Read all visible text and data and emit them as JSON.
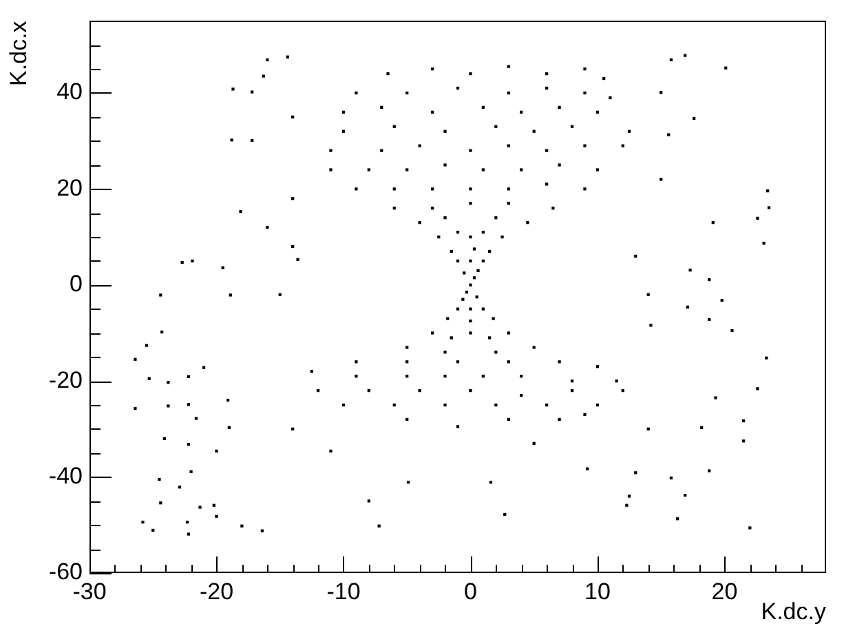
{
  "chart_data": {
    "type": "scatter",
    "xlabel": "K.dc.y",
    "ylabel": "K.dc.x",
    "x": [
      0,
      0.3,
      -0.3,
      0.6,
      -0.6,
      -0.5,
      0.5,
      1,
      -1,
      0,
      -1,
      1,
      0,
      1.5,
      -1.5,
      0.3,
      -1.8,
      1.8,
      0,
      2.5,
      -2.5,
      0,
      1,
      -1,
      3,
      -3,
      0,
      1.5,
      -1.5,
      -4,
      4.5,
      2,
      -2,
      -6,
      6.5,
      -3,
      3,
      0,
      -9,
      9,
      -6,
      -3,
      0,
      3,
      6,
      -11,
      -8,
      -5,
      -2,
      1,
      4,
      7,
      10,
      -11,
      -7,
      -4,
      0,
      3,
      6,
      9,
      12,
      -10,
      -6,
      -2,
      2,
      5,
      8,
      12.5,
      -10,
      -7,
      -3,
      1,
      4,
      7,
      10,
      -9,
      -5,
      -1,
      3,
      6,
      9,
      11,
      -6.5,
      -3,
      0,
      3,
      6,
      9,
      10.5,
      -5,
      5,
      -2,
      2,
      -9,
      -5,
      -1,
      3,
      7,
      10,
      -12.5,
      -9,
      -5,
      -2,
      1,
      4,
      8,
      11.5,
      -12,
      -8,
      -4,
      0,
      4,
      8,
      12,
      -10,
      -6,
      -2,
      2,
      6,
      10,
      -5,
      -1,
      3,
      7,
      9,
      -16,
      -14.4,
      -18.7,
      -17.2,
      16.9,
      20.1,
      15.8,
      -18.8,
      17.6,
      15.6,
      23.4,
      23.5,
      23.1,
      22.6,
      19.1,
      17.3,
      18.8,
      19.8,
      20.6,
      23.3,
      18.8,
      17.1,
      19.3,
      22.6,
      21.5,
      18.8,
      22,
      16.9,
      16.3,
      15.8,
      18.2,
      21.5,
      13,
      12.3,
      14.2,
      15,
      -26.4,
      -26.4,
      -24.4,
      -24.3,
      -25.5,
      -25.3,
      -23.8,
      -23.8,
      -24.1,
      -24.5,
      -24.4,
      -25.8,
      -25,
      -22.9,
      -22.3,
      -22.2,
      -22.2,
      -22,
      -21.3,
      -20.2,
      -20,
      -20,
      -22.2,
      -21,
      -21.6,
      -22.7,
      -21.9,
      -19.5,
      -18.9,
      -19.1,
      -19,
      -22.2,
      -18,
      -16.4,
      -7.2,
      -16.3,
      -17.2,
      -13.6,
      -18.1,
      -15,
      -14,
      -16,
      -14,
      14,
      13,
      15,
      -14,
      -11,
      -4.9,
      1.6,
      9.2,
      2.7,
      12.5,
      -8,
      5,
      -14,
      14
    ],
    "values": [
      0,
      1.5,
      -1.5,
      3,
      -3,
      2.5,
      -2.5,
      5,
      5,
      5,
      -5,
      -5,
      -5,
      7,
      7,
      7.5,
      -7,
      -7,
      -7.5,
      10,
      10,
      10,
      11,
      11,
      -10,
      -10,
      -10,
      -11,
      -11,
      13,
      13,
      14,
      14,
      16,
      16,
      16,
      17,
      17,
      20,
      20,
      20,
      20,
      20,
      20,
      21,
      24,
      24,
      24,
      25,
      24,
      24,
      25,
      24,
      28,
      28,
      29,
      28,
      29,
      28,
      29,
      29,
      32,
      33,
      32,
      33,
      32,
      33,
      32,
      36,
      37,
      36,
      37,
      36,
      37,
      36,
      40,
      40,
      41,
      40,
      41,
      40,
      39,
      44,
      45,
      44,
      45.5,
      44,
      45,
      43,
      -13,
      -13,
      -14,
      -14,
      -16,
      -16,
      -16,
      -16,
      -16,
      -17,
      -18,
      -19,
      -19,
      -19,
      -19,
      -19,
      -20,
      -20,
      -22,
      -22,
      -22,
      -22,
      -23,
      -22,
      -22,
      -25,
      -25,
      -25,
      -25,
      -25,
      -25,
      -28,
      -29.5,
      -28,
      -28,
      -27,
      46.9,
      47.5,
      40.8,
      40.2,
      47.8,
      45.2,
      46.9,
      30.2,
      34.7,
      31.3,
      19.6,
      16.1,
      8.7,
      13.9,
      13,
      3.1,
      1.1,
      -3.2,
      -9.5,
      -15.2,
      -7.2,
      -4.6,
      -23.5,
      -21.6,
      -32.5,
      -38.7,
      -50.6,
      -43.8,
      -48.7,
      -40.2,
      -29.7,
      -28.3,
      -39.1,
      -45.9,
      -8.4,
      40.1,
      -15.5,
      -25.7,
      -2.1,
      -9.8,
      -12.6,
      -19.5,
      -20.3,
      -25.2,
      -32,
      -40.5,
      -45.4,
      -49.4,
      -51.1,
      -42.1,
      -49.4,
      -51.9,
      -33.2,
      -38.9,
      -46.3,
      -45.9,
      -48.2,
      -34.6,
      -19.1,
      -17.2,
      -27.8,
      4.7,
      5,
      3.6,
      -2.1,
      -24,
      -29.7,
      -24.9,
      -50.2,
      -51.2,
      -50.2,
      43.5,
      30.1,
      5.3,
      15.3,
      -2,
      8,
      12,
      18,
      -2,
      6,
      22,
      35,
      -34.6,
      -41.1,
      -41.1,
      -38.3,
      -47.8,
      -44,
      -45,
      -33,
      -30,
      -30
    ],
    "color": "#000000",
    "xlim": [
      -30,
      28
    ],
    "ylim": [
      -60,
      55
    ],
    "xticks": [
      -30,
      {
        "value": -28,
        "label": null
      },
      {
        "value": -26,
        "label": null
      },
      {
        "value": -24,
        "label": null
      },
      {
        "value": -22,
        "label": null
      },
      -20,
      {
        "value": -18,
        "label": null
      },
      {
        "value": -16,
        "label": null
      },
      {
        "value": -14,
        "label": null
      },
      {
        "value": -12,
        "label": null
      },
      -10,
      {
        "value": -8,
        "label": null
      },
      {
        "value": -6,
        "label": null
      },
      {
        "value": -4,
        "label": null
      },
      {
        "value": -2,
        "label": null
      },
      0,
      {
        "value": 2,
        "label": null
      },
      {
        "value": 4,
        "label": null
      },
      {
        "value": 6,
        "label": null
      },
      {
        "value": 8,
        "label": null
      },
      10,
      {
        "value": 12,
        "label": null
      },
      {
        "value": 14,
        "label": null
      },
      {
        "value": 16,
        "label": null
      },
      {
        "value": 18,
        "label": null
      },
      20,
      {
        "value": 22,
        "label": null
      },
      {
        "value": 24,
        "label": null
      },
      {
        "value": 26,
        "label": null
      }
    ],
    "yticks": [
      -60,
      {
        "value": -55,
        "label": null
      },
      {
        "value": -50,
        "label": null
      },
      {
        "value": -45,
        "label": null
      },
      -40,
      {
        "value": -35,
        "label": null
      },
      {
        "value": -30,
        "label": null
      },
      {
        "value": -25,
        "label": null
      },
      -20,
      {
        "value": -15,
        "label": null
      },
      {
        "value": -10,
        "label": null
      },
      {
        "value": -5,
        "label": null
      },
      0,
      {
        "value": 5,
        "label": null
      },
      {
        "value": 10,
        "label": null
      },
      {
        "value": 15,
        "label": null
      },
      20,
      {
        "value": 25,
        "label": null
      },
      {
        "value": 30,
        "label": null
      },
      {
        "value": 35,
        "label": null
      },
      40,
      {
        "value": 45,
        "label": null
      },
      {
        "value": 50,
        "label": null
      }
    ],
    "grid": false,
    "marker": "square"
  }
}
